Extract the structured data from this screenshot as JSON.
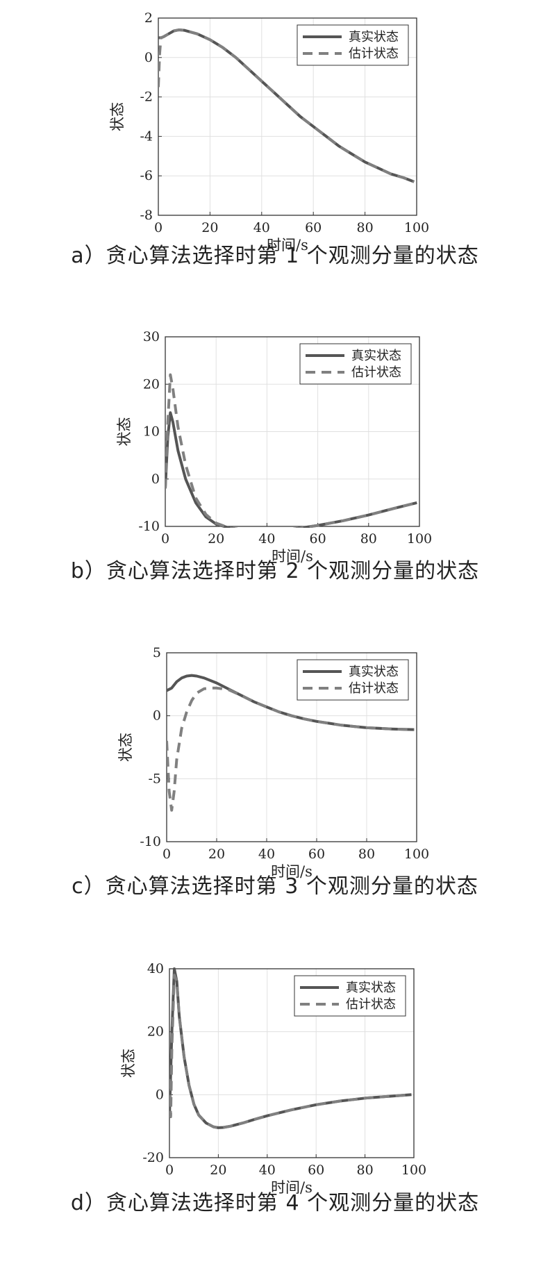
{
  "chart_data": [
    {
      "type": "line",
      "caption": "a）贪心算法选择时第 1 个观测分量的状态",
      "xlabel": "时间/s",
      "ylabel": "状态",
      "xlim": [
        0,
        100
      ],
      "ylim": [
        -8,
        2
      ],
      "xticks": [
        0,
        20,
        40,
        60,
        80,
        100
      ],
      "yticks": [
        -8,
        -6,
        -4,
        -2,
        0,
        2
      ],
      "grid": true,
      "legend": "top-right",
      "series": [
        {
          "name": "真实状态",
          "style": "solid",
          "color": "#555555",
          "x": [
            0,
            1,
            2,
            4,
            6,
            8,
            10,
            15,
            20,
            25,
            30,
            35,
            40,
            45,
            50,
            55,
            60,
            65,
            70,
            75,
            80,
            85,
            90,
            95,
            99
          ],
          "y": [
            1.0,
            1.0,
            1.05,
            1.2,
            1.35,
            1.4,
            1.38,
            1.2,
            0.9,
            0.5,
            0.0,
            -0.6,
            -1.2,
            -1.8,
            -2.4,
            -3.0,
            -3.5,
            -4.0,
            -4.5,
            -4.9,
            -5.3,
            -5.6,
            -5.9,
            -6.1,
            -6.3
          ]
        },
        {
          "name": "估计状态",
          "style": "dashed",
          "color": "#808080",
          "x": [
            0,
            0.5,
            1,
            2,
            4,
            6,
            8,
            10,
            15,
            20,
            25,
            30,
            35,
            40,
            45,
            50,
            55,
            60,
            65,
            70,
            75,
            80,
            85,
            90,
            95,
            99
          ],
          "y": [
            -1.5,
            0.2,
            1.0,
            1.05,
            1.2,
            1.35,
            1.4,
            1.38,
            1.2,
            0.9,
            0.5,
            0.0,
            -0.6,
            -1.2,
            -1.8,
            -2.4,
            -3.0,
            -3.5,
            -4.0,
            -4.5,
            -4.9,
            -5.3,
            -5.6,
            -5.9,
            -6.1,
            -6.3
          ]
        }
      ]
    },
    {
      "type": "line",
      "caption": "b）贪心算法选择时第 2 个观测分量的状态",
      "xlabel": "时间/s",
      "ylabel": "状态",
      "xlim": [
        0,
        100
      ],
      "ylim": [
        -10,
        30
      ],
      "xticks": [
        0,
        20,
        40,
        60,
        80,
        100
      ],
      "yticks": [
        -10,
        0,
        10,
        20,
        30
      ],
      "grid": true,
      "legend": "top-right",
      "series": [
        {
          "name": "真实状态",
          "style": "solid",
          "color": "#555555",
          "x": [
            0,
            1,
            2,
            3,
            5,
            8,
            12,
            16,
            20,
            25,
            30,
            35,
            40,
            45,
            50,
            60,
            70,
            80,
            90,
            99
          ],
          "y": [
            -2,
            9,
            14,
            12,
            6,
            0,
            -5,
            -8,
            -9.5,
            -10.3,
            -10.7,
            -10.9,
            -11,
            -10.9,
            -10.6,
            -9.8,
            -8.8,
            -7.6,
            -6.2,
            -5
          ]
        },
        {
          "name": "估计状态",
          "style": "dashed",
          "color": "#808080",
          "x": [
            0,
            1,
            2,
            3,
            5,
            8,
            12,
            16,
            20,
            25,
            30,
            35,
            40,
            45,
            50,
            60,
            70,
            80,
            90,
            99
          ],
          "y": [
            -2,
            12,
            22,
            19,
            11,
            3,
            -4,
            -7.5,
            -9.3,
            -10.3,
            -10.7,
            -10.9,
            -11,
            -10.9,
            -10.6,
            -9.8,
            -8.8,
            -7.6,
            -6.2,
            -5
          ]
        }
      ]
    },
    {
      "type": "line",
      "caption": "c）贪心算法选择时第 3 个观测分量的状态",
      "xlabel": "时间/s",
      "ylabel": "状态",
      "xlim": [
        0,
        100
      ],
      "ylim": [
        -10,
        5
      ],
      "xticks": [
        0,
        20,
        40,
        60,
        80,
        100
      ],
      "yticks": [
        -10,
        -5,
        0,
        5
      ],
      "grid": true,
      "legend": "top-right",
      "series": [
        {
          "name": "真实状态",
          "style": "solid",
          "color": "#555555",
          "x": [
            0,
            2,
            4,
            6,
            8,
            10,
            12,
            15,
            20,
            25,
            30,
            35,
            40,
            45,
            50,
            55,
            60,
            65,
            70,
            75,
            80,
            85,
            90,
            95,
            99
          ],
          "y": [
            2.0,
            2.2,
            2.7,
            3.0,
            3.15,
            3.2,
            3.15,
            3.0,
            2.6,
            2.1,
            1.6,
            1.1,
            0.7,
            0.3,
            0.0,
            -0.25,
            -0.45,
            -0.6,
            -0.75,
            -0.85,
            -0.95,
            -1.0,
            -1.05,
            -1.08,
            -1.1
          ]
        },
        {
          "name": "估计状态",
          "style": "dashed",
          "color": "#808080",
          "x": [
            0,
            1,
            2,
            3,
            4,
            6,
            8,
            10,
            12,
            15,
            18,
            20,
            22,
            25,
            30,
            35,
            40,
            45,
            50,
            55,
            60,
            65,
            70,
            75,
            80,
            85,
            90,
            95,
            99
          ],
          "y": [
            -2,
            -6,
            -7.5,
            -6,
            -3.5,
            -1,
            0.3,
            1.2,
            1.8,
            2.15,
            2.2,
            2.2,
            2.15,
            2.05,
            1.6,
            1.1,
            0.7,
            0.3,
            0.0,
            -0.25,
            -0.45,
            -0.6,
            -0.75,
            -0.85,
            -0.95,
            -1.0,
            -1.05,
            -1.08,
            -1.1
          ]
        }
      ]
    },
    {
      "type": "line",
      "caption": "d）贪心算法选择时第 4 个观测分量的状态",
      "xlabel": "时间/s",
      "ylabel": "状态",
      "xlim": [
        0,
        100
      ],
      "ylim": [
        -20,
        40
      ],
      "xticks": [
        0,
        20,
        40,
        60,
        80,
        100
      ],
      "yticks": [
        -20,
        0,
        20,
        40
      ],
      "grid": true,
      "legend": "top-right",
      "series": [
        {
          "name": "真实状态",
          "style": "solid",
          "color": "#555555",
          "x": [
            0,
            1,
            2,
            3,
            4,
            6,
            8,
            10,
            12,
            15,
            18,
            20,
            22,
            25,
            30,
            35,
            40,
            50,
            60,
            70,
            80,
            90,
            99
          ],
          "y": [
            -7,
            20,
            40,
            36,
            25,
            12,
            3,
            -3,
            -6.5,
            -9,
            -10.2,
            -10.5,
            -10.4,
            -10,
            -9,
            -7.8,
            -6.7,
            -4.8,
            -3.2,
            -2,
            -1.1,
            -0.5,
            0
          ]
        },
        {
          "name": "估计状态",
          "style": "dashed",
          "color": "#808080",
          "x": [
            0,
            0.5,
            1,
            2,
            3,
            4,
            6,
            8,
            10,
            12,
            15,
            18,
            20,
            22,
            25,
            30,
            35,
            40,
            50,
            60,
            70,
            80,
            90,
            99
          ],
          "y": [
            5,
            -7,
            15,
            38,
            36,
            25,
            12,
            3,
            -3,
            -6.5,
            -9,
            -10.2,
            -10.5,
            -10.4,
            -10,
            -9,
            -7.8,
            -6.7,
            -4.8,
            -3.2,
            -2,
            -1.1,
            -0.5,
            0
          ]
        }
      ]
    }
  ]
}
